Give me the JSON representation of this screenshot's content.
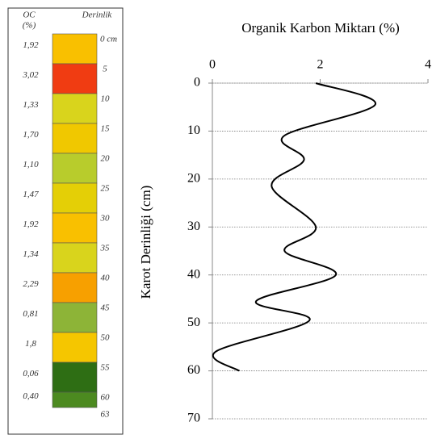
{
  "core": {
    "oc_header": "OC",
    "oc_unit": "(%)",
    "depth_header": "Derinlik",
    "segments": [
      {
        "oc": "1,92",
        "color": "#f9c000"
      },
      {
        "oc": "3,02",
        "color": "#f03c12"
      },
      {
        "oc": "1,33",
        "color": "#d9d41c"
      },
      {
        "oc": "1,70",
        "color": "#f0c800"
      },
      {
        "oc": "1,10",
        "color": "#b8cc2c"
      },
      {
        "oc": "1,47",
        "color": "#e4cf06"
      },
      {
        "oc": "1,92",
        "color": "#f9c000"
      },
      {
        "oc": "1,34",
        "color": "#d9d41c"
      },
      {
        "oc": "2,29",
        "color": "#f7a000"
      },
      {
        "oc": "0,81",
        "color": "#8db437"
      },
      {
        "oc": "1,8",
        "color": "#f5c600"
      },
      {
        "oc": "0,06",
        "color": "#2e6e14"
      },
      {
        "oc": "0,40",
        "color": "#4c8a20"
      }
    ],
    "depths": [
      "0 cm",
      "5",
      "10",
      "15",
      "20",
      "25",
      "30",
      "35",
      "40",
      "45",
      "50",
      "55",
      "60",
      "63"
    ]
  },
  "chart_data": {
    "type": "line",
    "title": "Organik Karbon Miktarı (%)",
    "y_label": "Karot Derinliği (cm)",
    "x": [
      1.92,
      3.02,
      1.33,
      1.7,
      1.1,
      1.92,
      1.34,
      2.29,
      0.81,
      1.8,
      0.06,
      0.5
    ],
    "series": [
      {
        "color": "#000000",
        "values": [
          0,
          4.5,
          11,
          16,
          21.5,
          30,
          35,
          40,
          45.5,
          49.5,
          56,
          60
        ]
      }
    ],
    "xlim": [
      0,
      4
    ],
    "xticks": [
      0,
      2,
      4
    ],
    "ylim": [
      0,
      70
    ],
    "yticks": [
      0,
      10,
      20,
      30,
      40,
      50,
      60,
      70
    ],
    "y_inverted": true,
    "grid": true
  }
}
